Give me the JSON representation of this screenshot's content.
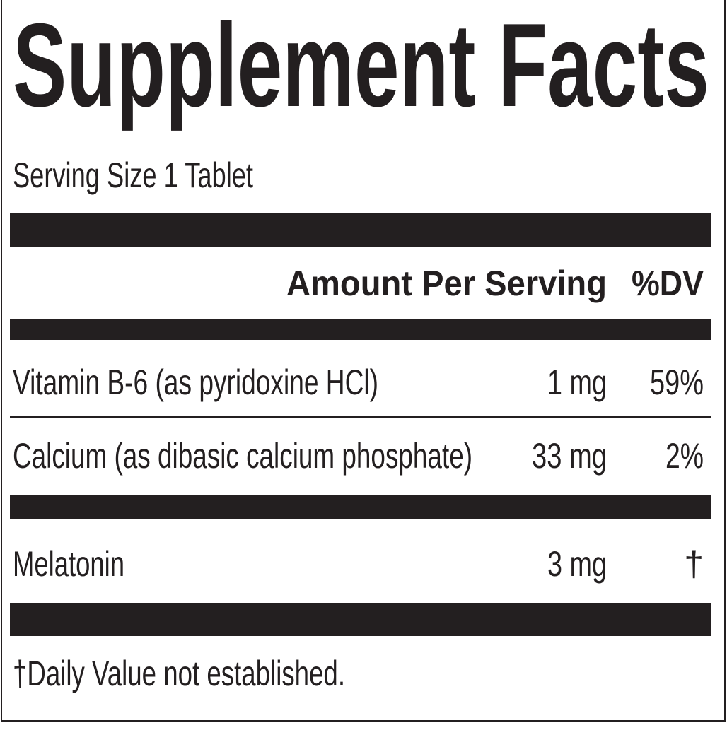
{
  "label": {
    "title": "Supplement Facts",
    "serving_size": "Serving Size 1 Tablet",
    "table": {
      "header": [
        "Amount Per Serving",
        "%DV"
      ],
      "rows": [
        [
          "Vitamin B-6 (as pyridoxine HCl)",
          "1 mg",
          "59%"
        ],
        [
          "Calcium (as dibasic calcium phosphate)",
          "33 mg",
          "2%"
        ],
        [
          "Melatonin",
          "3 mg",
          "†"
        ]
      ]
    },
    "footnote": "†Daily Value not established."
  }
}
